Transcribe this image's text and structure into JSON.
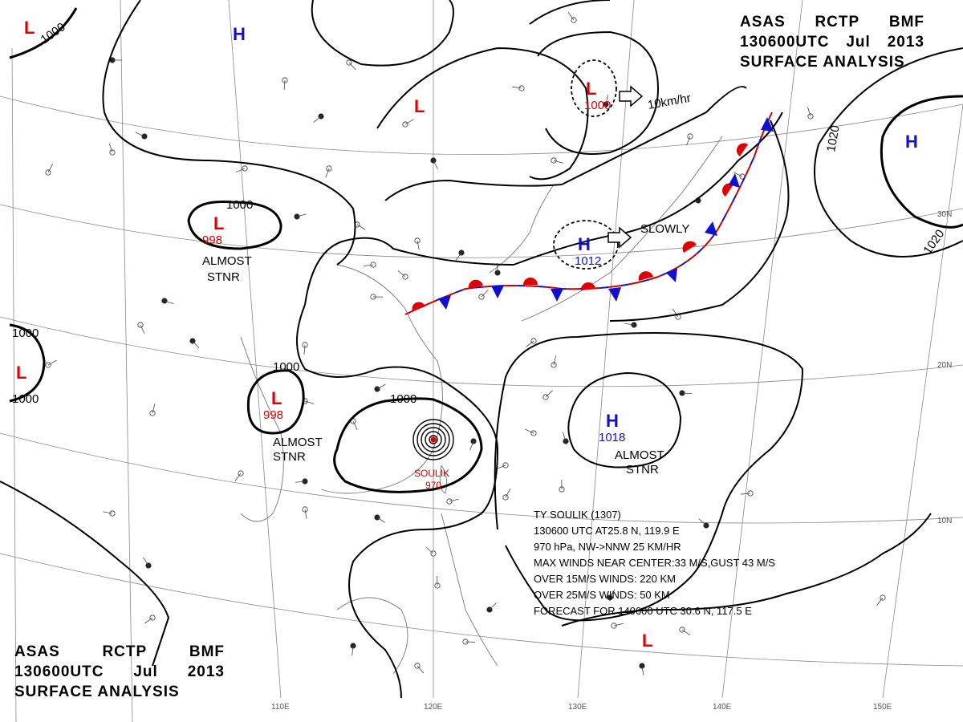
{
  "header_top": {
    "line1": [
      "ASAS",
      "RCTP",
      "BMF"
    ],
    "line2": [
      "130600UTC",
      "Jul",
      "2013"
    ],
    "line3": "SURFACE ANALYSIS"
  },
  "header_bottom": {
    "line1": [
      "ASAS",
      "RCTP",
      "BMF"
    ],
    "line2": [
      "130600UTC",
      "Jul",
      "2013"
    ],
    "line3": "SURFACE ANALYSIS"
  },
  "colors": {
    "low": "#e00000",
    "high": "#1010d0",
    "isobar": "#000000",
    "grid": "#888888"
  },
  "longitude_labels": [
    "110E",
    "120E",
    "130E",
    "140E",
    "150E"
  ],
  "latitude_labels": [
    "30N",
    "20N",
    "10N"
  ],
  "isobar_labels": [
    "1000",
    "1000",
    "1000",
    "1000",
    "1000",
    "1000",
    "1020",
    "1020"
  ],
  "pressure_centers": [
    {
      "id": "low-nw-corner",
      "symbol": "L",
      "type": "low",
      "value": ""
    },
    {
      "id": "high-north",
      "symbol": "H",
      "type": "high",
      "value": ""
    },
    {
      "id": "low-north",
      "symbol": "L",
      "type": "low",
      "value": ""
    },
    {
      "id": "low-north-east",
      "symbol": "L",
      "type": "low",
      "value": "1000"
    },
    {
      "id": "high-east",
      "symbol": "H",
      "type": "high",
      "value": ""
    },
    {
      "id": "low-west",
      "symbol": "L",
      "type": "low",
      "value": "998",
      "note": [
        "ALMOST",
        "STNR"
      ]
    },
    {
      "id": "high-central",
      "symbol": "H",
      "type": "high",
      "value": "1012",
      "note": [
        "SLOWLY"
      ]
    },
    {
      "id": "low-far-west",
      "symbol": "L",
      "type": "low",
      "value": ""
    },
    {
      "id": "low-south-west",
      "symbol": "L",
      "type": "low",
      "value": "998",
      "note": [
        "ALMOST",
        "STNR"
      ]
    },
    {
      "id": "high-south-east",
      "symbol": "H",
      "type": "high",
      "value": "1018",
      "note": [
        "ALMOST",
        "STNR"
      ]
    },
    {
      "id": "low-south-east",
      "symbol": "L",
      "type": "low",
      "value": ""
    }
  ],
  "movement_labels": {
    "north_low": "10km/hr",
    "central_high": "SLOWLY"
  },
  "typhoon": {
    "name_lines": [
      "SOULIK",
      "970"
    ],
    "info": [
      "TY SOULIK (1307)",
      "130600 UTC AT25.8 N, 119.9 E",
      "970 hPa, NW->NNW 25 KM/HR",
      "MAX WINDS NEAR CENTER:33 M/S,GUST 43 M/S",
      "OVER 15M/S WINDS: 220 KM",
      "OVER 25M/S WINDS: 50 KM",
      "FORECAST FOR 140600 UTC 30.6 N, 117.5 E"
    ]
  }
}
